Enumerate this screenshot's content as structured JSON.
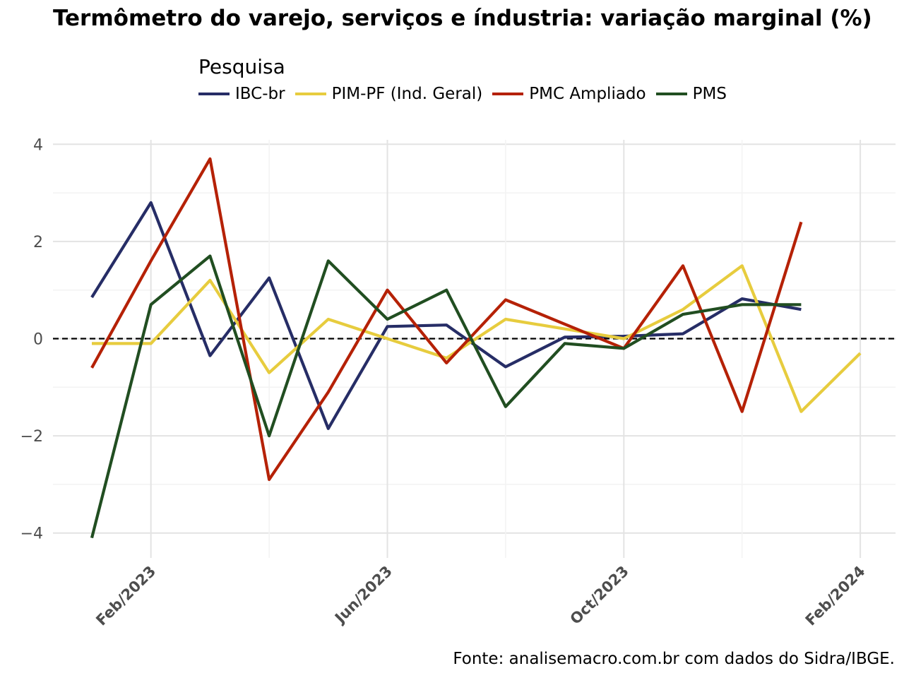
{
  "title": "Termômetro do varejo, serviços e índustria: variação marginal (%)",
  "legend_title": "Pesquisa",
  "caption": "Fonte: analisemacro.com.br com dados do Sidra/IBGE.",
  "chart_data": {
    "type": "line",
    "title": "Termômetro do varejo, serviços e índustria: variação marginal (%)",
    "xlabel": "",
    "ylabel": "",
    "x": [
      "2023-01",
      "2023-02",
      "2023-03",
      "2023-04",
      "2023-05",
      "2023-06",
      "2023-07",
      "2023-08",
      "2023-09",
      "2023-10",
      "2023-11",
      "2023-12",
      "2024-01",
      "2024-02"
    ],
    "x_ticks": [
      "Feb/2023",
      "Jun/2023",
      "Oct/2023",
      "Feb/2024"
    ],
    "y_ticks": [
      "4",
      "2",
      "0",
      "−2",
      "−4"
    ],
    "ylim": [
      -4.3,
      4.15
    ],
    "reference_line": {
      "y": 0,
      "style": "dashed"
    },
    "grid": true,
    "legend_position": "top",
    "series": [
      {
        "name": "IBC-br",
        "color": "#262D66",
        "values": [
          0.85,
          2.8,
          -0.35,
          1.25,
          -1.85,
          0.25,
          0.28,
          -0.58,
          0.03,
          0.05,
          0.1,
          0.82,
          0.6,
          null
        ]
      },
      {
        "name": "PIM-PF (Ind. Geral)",
        "color": "#E7CC3E",
        "values": [
          -0.1,
          -0.1,
          1.2,
          -0.7,
          0.4,
          0.0,
          -0.4,
          0.4,
          0.2,
          0.0,
          0.6,
          1.5,
          -1.5,
          -0.3
        ]
      },
      {
        "name": "PMC Ampliado",
        "color": "#B52106",
        "values": [
          -0.6,
          1.6,
          3.7,
          -2.9,
          -1.1,
          1.0,
          -0.5,
          0.8,
          0.3,
          -0.2,
          1.5,
          -1.5,
          2.4,
          null
        ]
      },
      {
        "name": "PMS",
        "color": "#214E21",
        "values": [
          -4.1,
          0.7,
          1.7,
          -2.0,
          1.6,
          0.4,
          1.0,
          -1.4,
          -0.1,
          -0.2,
          0.5,
          0.7,
          0.7,
          null
        ]
      }
    ]
  }
}
